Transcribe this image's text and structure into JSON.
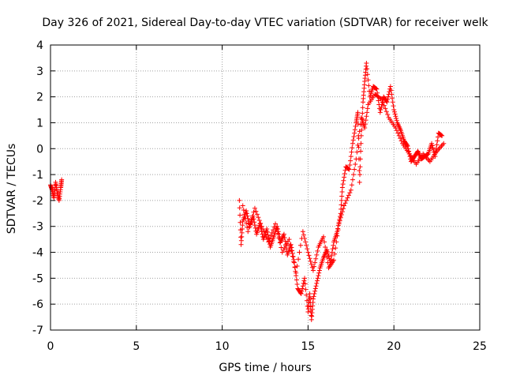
{
  "chart_data": {
    "type": "scatter",
    "title": "Day 326 of 2021, Sidereal Day-to-day VTEC variation (SDTVAR) for receiver welk",
    "xlabel": "GPS time / hours",
    "ylabel": "SDTVAR / TECUs",
    "xlim": [
      0,
      25
    ],
    "ylim": [
      -7,
      4
    ],
    "xticks": [
      0,
      5,
      10,
      15,
      20,
      25
    ],
    "yticks": [
      -7,
      -6,
      -5,
      -4,
      -3,
      -2,
      -1,
      0,
      1,
      2,
      3,
      4
    ],
    "grid": true,
    "marker": "+",
    "color": "#ff0000",
    "series": [
      {
        "name": "welk SDTVAR",
        "segments": [
          [
            [
              0.0,
              -1.4
            ],
            [
              0.1,
              -1.6
            ],
            [
              0.2,
              -1.9
            ],
            [
              0.3,
              -1.3
            ],
            [
              0.4,
              -1.7
            ],
            [
              0.5,
              -2.0
            ],
            [
              0.6,
              -1.5
            ],
            [
              0.65,
              -1.2
            ]
          ],
          [
            [
              11.0,
              -2.0
            ],
            [
              11.1,
              -3.7
            ],
            [
              11.2,
              -2.8
            ],
            [
              11.4,
              -2.4
            ],
            [
              11.6,
              -3.0
            ],
            [
              11.8,
              -2.6
            ],
            [
              12.0,
              -3.3
            ],
            [
              12.2,
              -2.9
            ],
            [
              12.4,
              -3.5
            ],
            [
              12.6,
              -3.1
            ],
            [
              12.8,
              -3.8
            ],
            [
              13.0,
              -3.4
            ],
            [
              13.2,
              -3.0
            ],
            [
              13.4,
              -3.6
            ],
            [
              13.6,
              -3.3
            ],
            [
              13.8,
              -4.1
            ],
            [
              14.0,
              -3.7
            ],
            [
              14.2,
              -4.4
            ],
            [
              14.4,
              -5.4
            ],
            [
              14.6,
              -5.6
            ],
            [
              14.8,
              -5.0
            ],
            [
              15.0,
              -6.3
            ],
            [
              15.1,
              -5.6
            ],
            [
              15.2,
              -6.6
            ],
            [
              15.3,
              -5.8
            ],
            [
              15.5,
              -5.2
            ],
            [
              15.7,
              -4.6
            ],
            [
              15.9,
              -4.2
            ],
            [
              16.1,
              -3.9
            ],
            [
              16.3,
              -4.4
            ],
            [
              16.5,
              -3.6
            ],
            [
              16.7,
              -3.2
            ],
            [
              16.9,
              -2.5
            ],
            [
              17.0,
              -1.5
            ],
            [
              17.2,
              -0.7
            ],
            [
              17.4,
              -0.8
            ],
            [
              17.6,
              0.2
            ],
            [
              17.8,
              1.0
            ],
            [
              17.9,
              1.4
            ],
            [
              18.0,
              -1.3
            ],
            [
              18.1,
              0.5
            ],
            [
              18.2,
              1.8
            ],
            [
              18.3,
              2.6
            ],
            [
              18.4,
              3.3
            ],
            [
              18.6,
              2.0
            ],
            [
              18.8,
              2.4
            ],
            [
              19.0,
              2.3
            ],
            [
              19.2,
              1.4
            ],
            [
              19.4,
              2.0
            ],
            [
              19.6,
              1.8
            ],
            [
              19.8,
              2.4
            ],
            [
              20.0,
              1.5
            ],
            [
              20.2,
              1.0
            ],
            [
              20.4,
              0.7
            ],
            [
              20.6,
              0.3
            ],
            [
              20.8,
              0.1
            ],
            [
              21.0,
              -0.5
            ],
            [
              21.2,
              -0.3
            ],
            [
              21.4,
              -0.1
            ],
            [
              21.6,
              -0.4
            ],
            [
              21.8,
              -0.3
            ],
            [
              22.0,
              -0.2
            ],
            [
              22.2,
              0.2
            ],
            [
              22.4,
              -0.3
            ],
            [
              22.6,
              0.6
            ],
            [
              22.8,
              0.5
            ]
          ],
          [
            [
              11.2,
              -2.2
            ],
            [
              11.5,
              -3.2
            ],
            [
              11.9,
              -2.3
            ],
            [
              12.3,
              -3.0
            ],
            [
              12.7,
              -3.6
            ],
            [
              13.1,
              -2.9
            ],
            [
              13.5,
              -4.0
            ],
            [
              13.9,
              -3.5
            ],
            [
              14.3,
              -4.8
            ],
            [
              14.7,
              -3.2
            ],
            [
              15.0,
              -4.0
            ],
            [
              15.3,
              -4.7
            ],
            [
              15.6,
              -3.8
            ],
            [
              15.9,
              -3.4
            ],
            [
              16.2,
              -4.6
            ],
            [
              16.5,
              -4.3
            ],
            [
              16.8,
              -2.9
            ],
            [
              17.1,
              -2.2
            ],
            [
              17.5,
              -1.6
            ],
            [
              17.8,
              -0.4
            ],
            [
              18.1,
              1.2
            ],
            [
              18.3,
              0.8
            ],
            [
              18.5,
              1.7
            ],
            [
              18.9,
              2.1
            ],
            [
              19.3,
              1.9
            ],
            [
              19.7,
              1.2
            ],
            [
              20.1,
              0.8
            ],
            [
              20.5,
              0.2
            ],
            [
              20.9,
              -0.2
            ],
            [
              21.3,
              -0.6
            ],
            [
              21.7,
              -0.2
            ],
            [
              22.1,
              -0.5
            ],
            [
              22.5,
              -0.1
            ],
            [
              22.9,
              0.2
            ]
          ]
        ]
      }
    ]
  }
}
